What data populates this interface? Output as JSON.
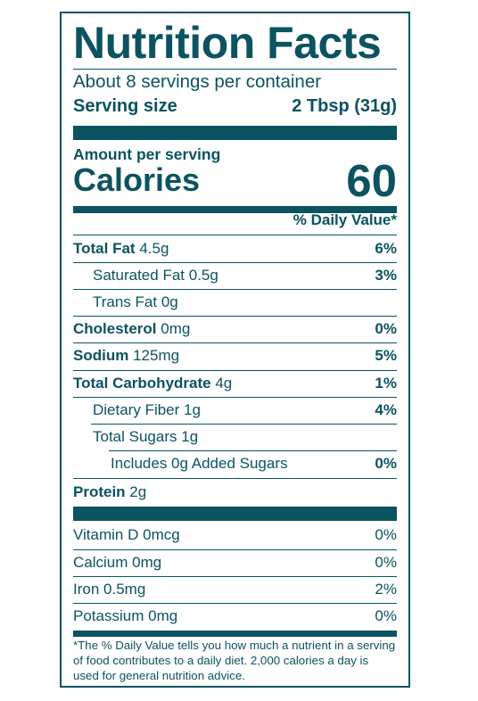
{
  "label": {
    "title": "Nutrition Facts",
    "servings_per_container": "About 8 servings per container",
    "serving_size_label": "Serving size",
    "serving_size_value": "2 Tbsp (31g)",
    "amount_per_serving": "Amount per serving",
    "calories_label": "Calories",
    "calories_value": "60",
    "daily_value_header": "% Daily Value*",
    "nutrients": [
      {
        "name": "Total Fat",
        "amount": "4.5g",
        "dv": "6%"
      },
      {
        "name": "Saturated Fat",
        "amount": "0.5g",
        "dv": "3%"
      },
      {
        "name": "Trans Fat",
        "amount": "0g",
        "dv": ""
      },
      {
        "name": "Cholesterol",
        "amount": "0mg",
        "dv": "0%"
      },
      {
        "name": "Sodium",
        "amount": "125mg",
        "dv": "5%"
      },
      {
        "name": "Total Carbohydrate",
        "amount": "4g",
        "dv": "1%"
      },
      {
        "name": "Dietary Fiber",
        "amount": "1g",
        "dv": "4%"
      },
      {
        "name": "Total Sugars",
        "amount": "1g",
        "dv": ""
      },
      {
        "name": "Includes 0g Added Sugars",
        "amount": "",
        "dv": "0%"
      },
      {
        "name": "Protein",
        "amount": "2g",
        "dv": ""
      }
    ],
    "vitamins": [
      {
        "name": "Vitamin D",
        "amount": "0mcg",
        "dv": "0%"
      },
      {
        "name": "Calcium",
        "amount": "0mg",
        "dv": "0%"
      },
      {
        "name": "Iron",
        "amount": "0.5mg",
        "dv": "2%"
      },
      {
        "name": "Potassium",
        "amount": "0mg",
        "dv": "0%"
      }
    ],
    "footnote": "*The % Daily Value tells you how much a nutrient in a serving of food contributes to a daily diet. 2,000 calories a day is used for general nutrition advice.",
    "colors": {
      "ink": "#0b5360",
      "background": "#ffffff"
    }
  }
}
